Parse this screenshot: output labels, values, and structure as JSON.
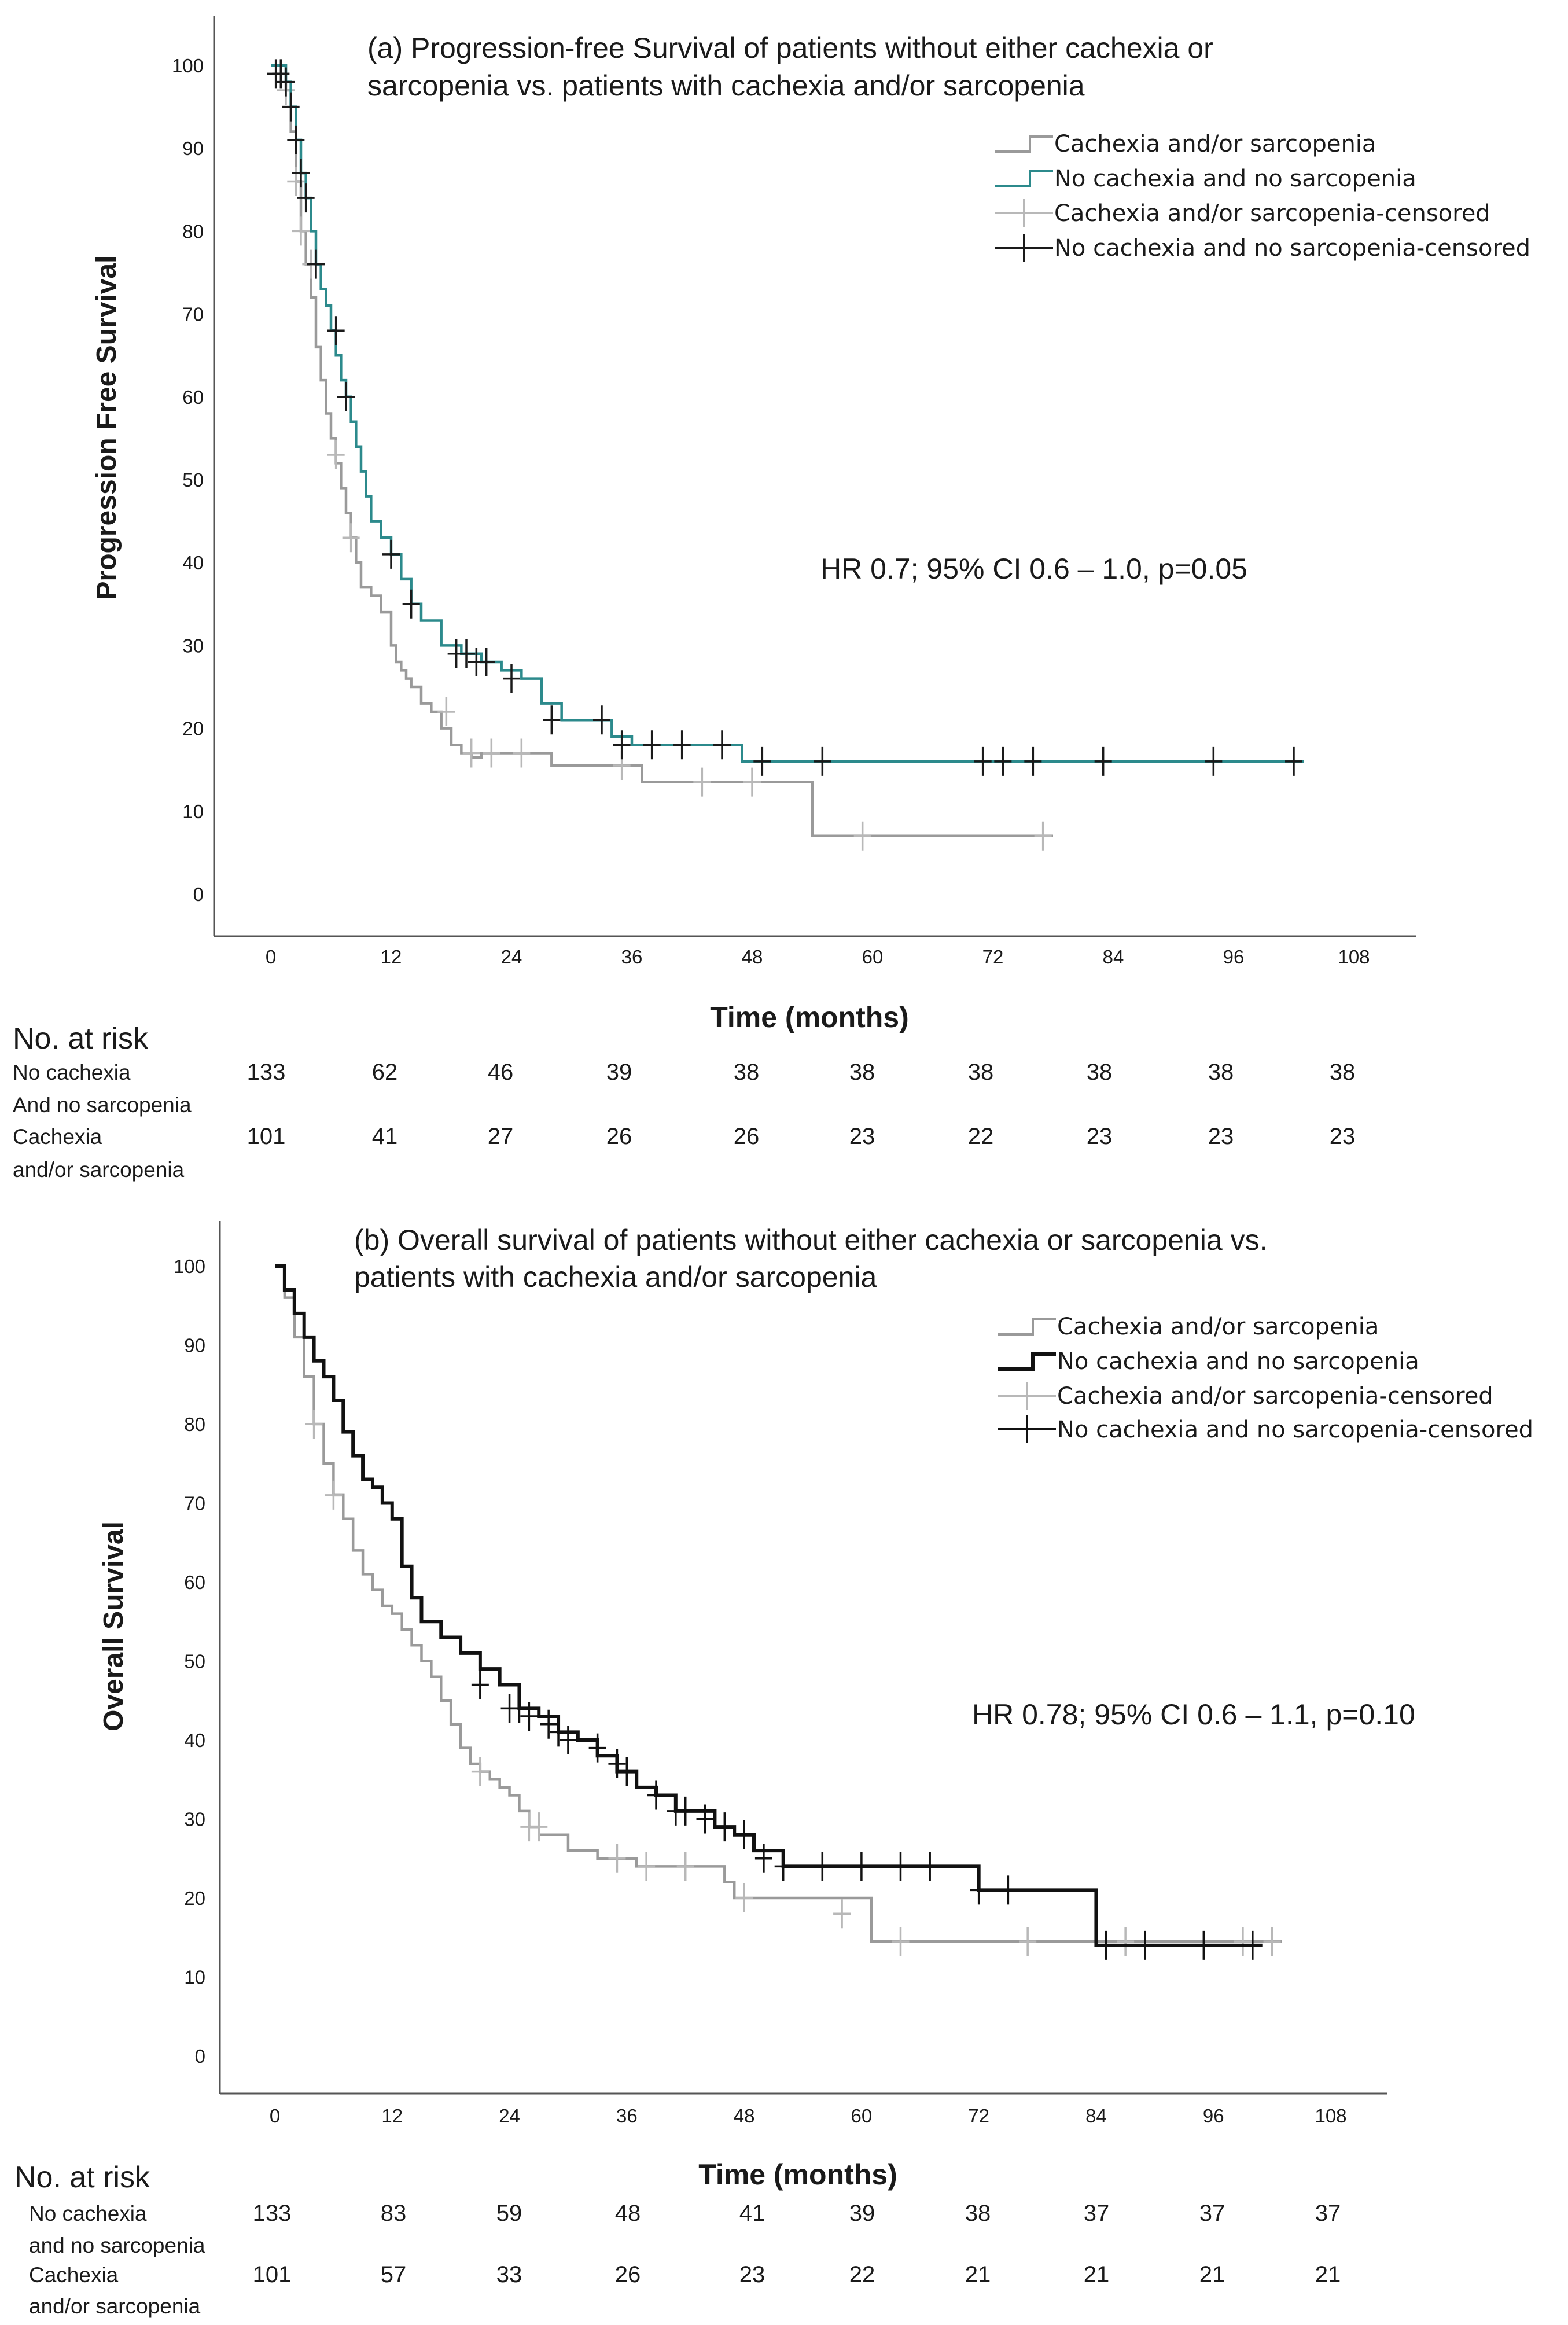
{
  "chart_data": [
    {
      "type": "line",
      "title": "(a) Progression-free Survival of patients without either cachexia or sarcopenia vs. patients with cachexia and/or sarcopenia",
      "title_lines": [
        "(a) Progression-free Survival of patients without either cachexia or",
        "sarcopenia vs. patients with cachexia and/or sarcopenia"
      ],
      "xlabel": "Time (months)",
      "ylabel": "Progression Free Survival",
      "xlim": [
        0,
        108
      ],
      "ylim": [
        0,
        100
      ],
      "xticks": [
        "0",
        "12",
        "24",
        "36",
        "48",
        "60",
        "72",
        "84",
        "96",
        "108"
      ],
      "yticks": [
        "0",
        "10",
        "20",
        "30",
        "40",
        "50",
        "60",
        "70",
        "80",
        "90",
        "100"
      ],
      "legend_position": "top-right",
      "legend": [
        "Cachexia and/or sarcopenia",
        "No cachexia and no sarcopenia",
        "Cachexia and/or sarcopenia-censored",
        "No cachexia and no sarcopenia-censored"
      ],
      "annotation": "HR 0.7; 95% CI 0.6 – 1.0, p=0.05",
      "series": [
        {
          "name": "Cachexia and/or sarcopenia",
          "color": "#9a9a9a",
          "censor_color": "#b8b8b8",
          "x": [
            0,
            1.5,
            2,
            2.5,
            3,
            3.5,
            4,
            4.5,
            5,
            5.5,
            6,
            6.5,
            7,
            7.5,
            8,
            8.5,
            9,
            10,
            11,
            12,
            12.5,
            13,
            13.5,
            14,
            15,
            16,
            17,
            18,
            19,
            20,
            21,
            28,
            37,
            53,
            54,
            78
          ],
          "y": [
            100,
            97,
            92,
            86,
            80,
            76,
            72,
            66,
            62,
            58,
            55,
            52,
            49,
            46,
            43,
            40,
            37,
            36,
            34,
            30,
            28,
            27,
            26,
            25,
            23,
            22,
            20,
            18,
            17,
            16.5,
            17,
            15.5,
            13.5,
            13.5,
            7,
            7
          ],
          "censored_x": [
            1,
            1.5,
            2.5,
            3,
            4,
            6.5,
            8,
            17.5,
            20,
            22,
            25,
            35,
            43,
            48,
            59,
            77
          ],
          "censored_y": [
            99,
            97,
            86,
            80,
            76,
            53,
            43,
            22,
            17,
            17,
            17,
            15.5,
            13.5,
            13.5,
            7,
            7
          ]
        },
        {
          "name": "No cachexia and no sarcopenia",
          "color": "#2c8a8c",
          "censor_color": "#1a1a1a",
          "x": [
            0,
            1.5,
            2,
            2.5,
            3,
            3.5,
            4,
            4.5,
            5,
            5.5,
            6,
            6.5,
            7,
            7.5,
            8,
            8.5,
            9,
            9.5,
            10,
            11,
            12,
            13,
            14,
            15,
            17,
            19,
            21,
            23,
            25,
            27,
            29,
            33,
            34,
            36,
            47,
            103
          ],
          "y": [
            100,
            98,
            95,
            91,
            87,
            84,
            80,
            76,
            73,
            71,
            68,
            65,
            62,
            60,
            57,
            54,
            51,
            48,
            45,
            43,
            41,
            38,
            35,
            33,
            30,
            29,
            28,
            27,
            26,
            23,
            21,
            21,
            19,
            18,
            16,
            16
          ],
          "censored_x": [
            0.5,
            1,
            1.5,
            2,
            2.5,
            3,
            3.5,
            4.5,
            6.5,
            7.5,
            12,
            14,
            18.5,
            19.5,
            20.5,
            21.5,
            24,
            28,
            33,
            35,
            38,
            41,
            45,
            49,
            55,
            71,
            73,
            76,
            83,
            94,
            102
          ],
          "censored_y": [
            99,
            99,
            98,
            95,
            91,
            87,
            84,
            76,
            68,
            60,
            41,
            35,
            29,
            29,
            28,
            28,
            26,
            21,
            21,
            18,
            18,
            18,
            18,
            16,
            16,
            16,
            16,
            16,
            16,
            16,
            16
          ]
        }
      ],
      "at_risk": {
        "heading": "No. at risk",
        "rows": [
          {
            "label": [
              "No cachexia",
              "And no sarcopenia"
            ],
            "values": [
              "133",
              "62",
              "46",
              "39",
              "38",
              "38",
              "38",
              "38",
              "38",
              "38"
            ]
          },
          {
            "label": [
              "Cachexia",
              "and/or sarcopenia"
            ],
            "values": [
              "101",
              "41",
              "27",
              "26",
              "26",
              "23",
              "22",
              "23",
              "23",
              "23"
            ]
          }
        ]
      }
    },
    {
      "type": "line",
      "title": "(b) Overall survival of patients without either cachexia or sarcopenia vs. patients with cachexia and/or sarcopenia",
      "title_lines": [
        "(b) Overall survival of patients without either cachexia or sarcopenia vs.",
        "patients with cachexia and/or sarcopenia"
      ],
      "xlabel": "Time (months)",
      "ylabel": "Overall Survival",
      "xlim": [
        0,
        108
      ],
      "ylim": [
        0,
        100
      ],
      "xticks": [
        "0",
        "12",
        "24",
        "36",
        "48",
        "60",
        "72",
        "84",
        "96",
        "108"
      ],
      "yticks": [
        "0",
        "10",
        "20",
        "30",
        "40",
        "50",
        "60",
        "70",
        "80",
        "90",
        "100"
      ],
      "legend_position": "top-right",
      "legend": [
        "Cachexia and/or sarcopenia",
        "No cachexia and no sarcopenia",
        "Cachexia and/or sarcopenia-censored",
        "No cachexia and no sarcopenia-censored"
      ],
      "annotation": "HR 0.78; 95% CI 0.6 – 1.1, p=0.10",
      "series": [
        {
          "name": "Cachexia and/or sarcopenia",
          "color": "#9a9a9a",
          "censor_color": "#b8b8b8",
          "x": [
            0,
            1,
            2,
            3,
            4,
            5,
            6,
            7,
            8,
            9,
            10,
            11,
            12,
            13,
            14,
            15,
            16,
            17,
            18,
            19,
            20,
            21,
            22,
            23,
            24,
            25,
            26,
            27,
            28,
            30,
            33,
            37,
            40,
            46,
            47,
            56,
            61,
            103
          ],
          "y": [
            100,
            96,
            91,
            86,
            80,
            75,
            71,
            68,
            64,
            61,
            59,
            57,
            56,
            54,
            52,
            50,
            48,
            45,
            42,
            39,
            37,
            36,
            35,
            34,
            33,
            31,
            29,
            28,
            28,
            26,
            25,
            24,
            24,
            22,
            20,
            20,
            14.5,
            14.5
          ],
          "censored_x": [
            4,
            6,
            21,
            26,
            27,
            35,
            38,
            42,
            48,
            58,
            64,
            77,
            87,
            99,
            102
          ],
          "censored_y": [
            80,
            71,
            36,
            29,
            29,
            25,
            24,
            24,
            20,
            18,
            14.5,
            14.5,
            14.5,
            14.5,
            14.5
          ]
        },
        {
          "name": "No cachexia and no sarcopenia",
          "color": "#111111",
          "censor_color": "#111111",
          "x": [
            0,
            1,
            2,
            3,
            4,
            5,
            6,
            7,
            8,
            9,
            10,
            11,
            12,
            13,
            14,
            15,
            17,
            19,
            21,
            23,
            25,
            27,
            29,
            31,
            33,
            35,
            37,
            39,
            41,
            43,
            45,
            47,
            49,
            52,
            62,
            69,
            72,
            84,
            101
          ],
          "y": [
            100,
            97,
            94,
            91,
            88,
            86,
            83,
            79,
            76,
            73,
            72,
            70,
            68,
            62,
            58,
            55,
            53,
            51,
            49,
            47,
            44,
            43,
            41,
            40,
            38,
            36,
            34,
            33,
            31,
            31,
            29,
            28,
            26,
            24,
            24,
            24,
            21,
            14,
            14
          ],
          "censored_x": [
            21,
            24,
            25,
            26,
            28,
            29,
            30,
            33,
            35,
            36,
            39,
            41,
            42,
            44,
            46,
            48,
            50,
            52,
            56,
            60,
            64,
            67,
            72,
            75,
            85,
            89,
            95,
            100
          ],
          "censored_y": [
            47,
            44,
            44,
            43,
            42,
            41,
            40,
            39,
            37,
            36,
            33,
            31,
            31,
            30,
            29,
            28,
            25,
            24,
            24,
            24,
            24,
            24,
            21,
            21,
            14,
            14,
            14,
            14
          ]
        }
      ],
      "at_risk": {
        "heading": "No. at risk",
        "rows": [
          {
            "label": [
              "No cachexia",
              "and no sarcopenia"
            ],
            "values": [
              "133",
              "83",
              "59",
              "48",
              "41",
              "39",
              "38",
              "37",
              "37",
              "37"
            ]
          },
          {
            "label": [
              "Cachexia",
              "and/or sarcopenia"
            ],
            "values": [
              "101",
              "57",
              "33",
              "26",
              "23",
              "22",
              "21",
              "21",
              "21",
              "21"
            ]
          }
        ]
      }
    }
  ]
}
